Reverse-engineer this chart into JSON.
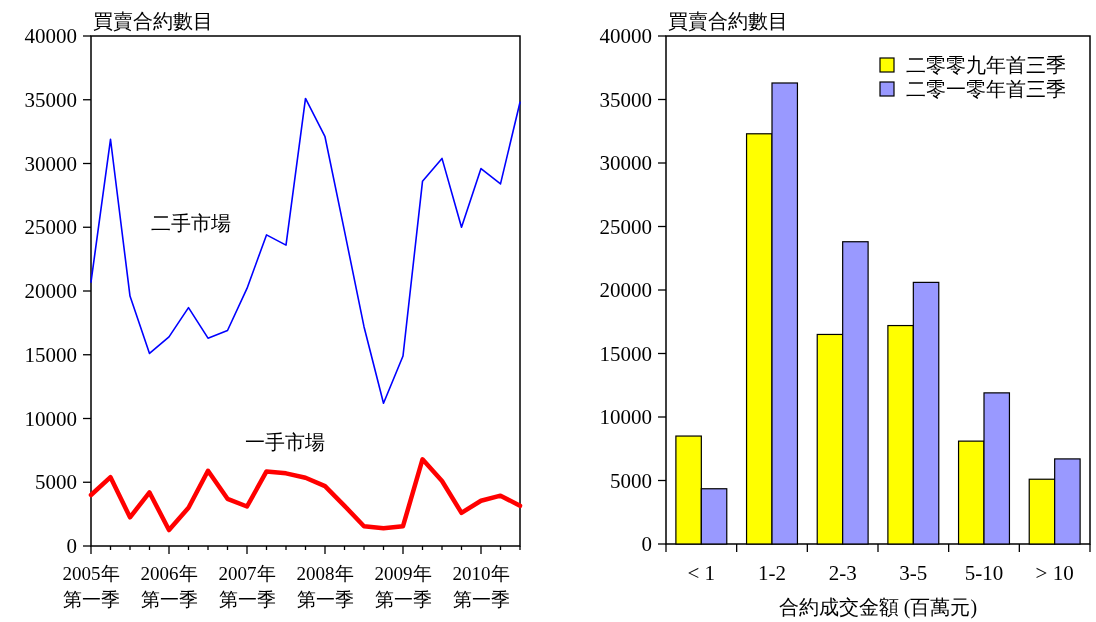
{
  "chart_data": [
    {
      "type": "line",
      "ylabel": "買賣合約數目",
      "categories": [
        "2005年第一季",
        null,
        null,
        null,
        "2006年第一季",
        null,
        null,
        null,
        "2007年第一季",
        null,
        null,
        null,
        "2008年第一季",
        null,
        null,
        null,
        "2009年第一季",
        null,
        null,
        null,
        "2010年第一季",
        null,
        null
      ],
      "series": [
        {
          "name": "二手市場",
          "color": "#0000ff",
          "values": [
            20700,
            31900,
            19600,
            15100,
            16400,
            18700,
            16300,
            16900,
            20200,
            24400,
            23600,
            35100,
            32100,
            24700,
            17200,
            11200,
            14900,
            28600,
            30400,
            25000,
            29600,
            28400,
            34800
          ]
        },
        {
          "name": "一手市場",
          "color": "#ff0000",
          "values": [
            4000,
            5400,
            2250,
            4200,
            1250,
            3000,
            5900,
            3700,
            3100,
            5850,
            5700,
            5350,
            4700,
            3150,
            1550,
            1400,
            1550,
            6800,
            5100,
            2600,
            3550,
            3950,
            3150
          ]
        }
      ],
      "ylim": [
        0,
        40000
      ],
      "yticks": [
        0,
        5000,
        10000,
        15000,
        20000,
        25000,
        30000,
        35000,
        40000
      ]
    },
    {
      "type": "bar",
      "ylabel": "買賣合約數目",
      "xlabel": "合約成交金額 (百萬元)",
      "categories": [
        "< 1",
        "1-2",
        "2-3",
        "3-5",
        "5-10",
        "> 10"
      ],
      "series": [
        {
          "name": "二零零九年首三季",
          "color": "#ffff00",
          "values": [
            8500,
            32300,
            16500,
            17200,
            8100,
            5100
          ]
        },
        {
          "name": "二零一零年首三季",
          "color": "#9999ff",
          "values": [
            4350,
            36300,
            23800,
            20600,
            11900,
            6700
          ]
        }
      ],
      "ylim": [
        0,
        40000
      ],
      "yticks": [
        0,
        5000,
        10000,
        15000,
        20000,
        25000,
        30000,
        35000,
        40000
      ],
      "legend": "top right"
    }
  ]
}
